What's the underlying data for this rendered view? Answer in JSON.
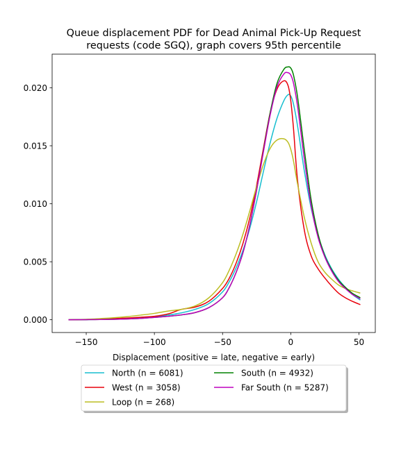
{
  "chart_data": {
    "type": "line",
    "title": [
      "Queue displacement PDF for Dead Animal Pick-Up Request",
      "requests (code SGQ), graph covers 95th percentile"
    ],
    "xlabel": "Displacement (positive = late, negative = early)",
    "ylabel": "",
    "xlim": [
      -175,
      62
    ],
    "ylim": [
      -0.0011,
      0.0229
    ],
    "xticks": [
      -150,
      -100,
      -50,
      0,
      50
    ],
    "xtick_labels": [
      "−150",
      "−100",
      "−50",
      "0",
      "50"
    ],
    "yticks": [
      0.0,
      0.005,
      0.01,
      0.015,
      0.02
    ],
    "ytick_labels": [
      "0.000",
      "0.005",
      "0.010",
      "0.015",
      "0.020"
    ],
    "grid": false,
    "legend_position": "below",
    "x": [
      -163,
      -150,
      -140,
      -130,
      -120,
      -110,
      -100,
      -90,
      -80,
      -70,
      -60,
      -50,
      -45,
      -40,
      -35,
      -30,
      -25,
      -20,
      -15,
      -10,
      -5,
      -2,
      0,
      2,
      5,
      10,
      15,
      20,
      25,
      30,
      35,
      40,
      45,
      51
    ],
    "series": [
      {
        "name": "North (n = 6081)",
        "color": "#17becf",
        "values": [
          0.0,
          1e-05,
          3e-05,
          6e-05,
          0.0001,
          0.00016,
          0.00025,
          0.0004,
          0.0006,
          0.0009,
          0.0014,
          0.0024,
          0.0033,
          0.0045,
          0.006,
          0.0079,
          0.0102,
          0.0128,
          0.0153,
          0.0174,
          0.0189,
          0.0194,
          0.0193,
          0.0186,
          0.0167,
          0.0128,
          0.0096,
          0.0073,
          0.0056,
          0.0044,
          0.0035,
          0.0028,
          0.0022,
          0.0017
        ]
      },
      {
        "name": "West (n = 3058)",
        "color": "#e8000b",
        "values": [
          0.0,
          2e-05,
          5e-05,
          0.0001,
          0.00015,
          0.00022,
          0.0003,
          0.0005,
          0.0009,
          0.0011,
          0.0016,
          0.0027,
          0.0036,
          0.0049,
          0.0066,
          0.0088,
          0.0116,
          0.0148,
          0.0179,
          0.0199,
          0.0206,
          0.0202,
          0.0189,
          0.0165,
          0.012,
          0.0077,
          0.0055,
          0.0044,
          0.0036,
          0.0029,
          0.0023,
          0.0019,
          0.0016,
          0.0013
        ]
      },
      {
        "name": "Loop (n = 268)",
        "color": "#bcbd22",
        "values": [
          0.0,
          4e-05,
          0.0001,
          0.00017,
          0.00027,
          0.0004,
          0.00055,
          0.00075,
          0.0009,
          0.0012,
          0.0019,
          0.0032,
          0.0043,
          0.0057,
          0.0074,
          0.0094,
          0.0115,
          0.0134,
          0.0148,
          0.0155,
          0.0156,
          0.0153,
          0.0147,
          0.0137,
          0.0117,
          0.0088,
          0.0066,
          0.005,
          0.0041,
          0.0035,
          0.003,
          0.0027,
          0.0025,
          0.0023
        ]
      },
      {
        "name": "South (n = 4932)",
        "color": "#008000",
        "values": [
          0.0,
          1e-05,
          2e-05,
          4e-05,
          7e-05,
          0.00012,
          0.0002,
          0.0003,
          0.00042,
          0.00062,
          0.00105,
          0.0019,
          0.0028,
          0.0041,
          0.0058,
          0.0082,
          0.0112,
          0.0146,
          0.0179,
          0.0204,
          0.0216,
          0.0218,
          0.0217,
          0.0211,
          0.0192,
          0.0146,
          0.0103,
          0.0074,
          0.0055,
          0.0043,
          0.0034,
          0.0028,
          0.0023,
          0.0019
        ]
      },
      {
        "name": "Far South (n = 5287)",
        "color": "#bf00bf",
        "values": [
          0.0,
          1e-05,
          2e-05,
          4e-05,
          7e-05,
          0.00012,
          0.0002,
          0.0003,
          0.00043,
          0.00063,
          0.00105,
          0.0019,
          0.0028,
          0.0041,
          0.0058,
          0.0082,
          0.0112,
          0.0145,
          0.0177,
          0.0201,
          0.0212,
          0.0213,
          0.0211,
          0.0204,
          0.0184,
          0.0138,
          0.0098,
          0.0071,
          0.0054,
          0.0042,
          0.0033,
          0.0027,
          0.0022,
          0.0018
        ]
      }
    ]
  }
}
